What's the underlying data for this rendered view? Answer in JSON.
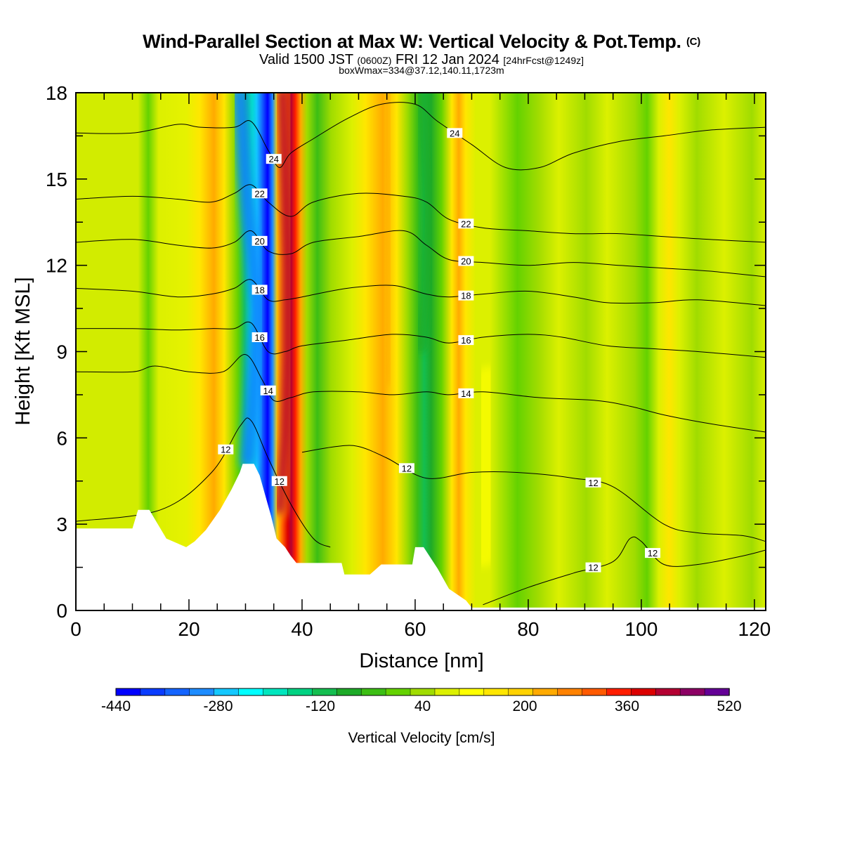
{
  "title": "Wind-Parallel Section at Max W: Vertical Velocity & Pot.Temp.",
  "title_mark": "(C)",
  "subtitle_pre": "Valid 1500 JST",
  "subtitle_zulu": "(0600Z)",
  "subtitle_date": "FRI 12 Jan 2024",
  "subtitle_fcst": "[24hrFcst@1249z]",
  "box_line": "boxWmax=334@37.12,140.11,1723m",
  "chart_data": {
    "type": "heatmap",
    "xlabel": "Distance [nm]",
    "ylabel": "Height [Kft MSL]",
    "xlim": [
      0,
      122
    ],
    "ylim": [
      0,
      18
    ],
    "x_ticks": [
      0,
      20,
      40,
      60,
      80,
      100,
      120
    ],
    "y_ticks": [
      0,
      3,
      6,
      9,
      12,
      15,
      18
    ],
    "colorbar": {
      "title": "Vertical Velocity [cm/s]",
      "min": -440,
      "max": 520,
      "step": 40,
      "tick_labels": [
        "-440",
        "-280",
        "-120",
        "40",
        "200",
        "360",
        "520"
      ],
      "colors": [
        "#0000ff",
        "#0a3cff",
        "#1464ff",
        "#1e8cff",
        "#14c8ff",
        "#00ffff",
        "#00e6be",
        "#00d282",
        "#14be50",
        "#1eaa28",
        "#3cbe14",
        "#64d200",
        "#a0dc00",
        "#dcf000",
        "#ffff00",
        "#ffe600",
        "#ffd200",
        "#ffaa00",
        "#ff8200",
        "#ff5a00",
        "#ff1e00",
        "#dc0000",
        "#b40032",
        "#8c0064",
        "#640096"
      ]
    },
    "velocity_features": [
      {
        "x": 32,
        "peak": -440,
        "kind": "downdraft core"
      },
      {
        "x": 37,
        "peak": 440,
        "kind": "updraft core"
      },
      {
        "x": 55,
        "peak": 200,
        "kind": "updraft"
      },
      {
        "x": 62,
        "peak": -160,
        "kind": "downdraft"
      },
      {
        "x": 68,
        "peak": 200,
        "kind": "updraft"
      },
      {
        "x": 78,
        "peak": -80,
        "kind": "downdraft"
      },
      {
        "x": 101,
        "peak": -80,
        "kind": "downdraft"
      },
      {
        "x": 104,
        "peak": 120,
        "kind": "updraft"
      }
    ],
    "terrain_kft": [
      [
        0,
        2.85
      ],
      [
        10,
        2.85
      ],
      [
        11,
        3.5
      ],
      [
        13,
        3.5
      ],
      [
        14.5,
        3.0
      ],
      [
        16,
        2.5
      ],
      [
        19.5,
        2.2
      ],
      [
        21,
        2.4
      ],
      [
        23,
        2.8
      ],
      [
        25.5,
        3.5
      ],
      [
        27.5,
        4.2
      ],
      [
        29,
        4.8
      ],
      [
        29.5,
        5.1
      ],
      [
        31.5,
        5.1
      ],
      [
        32.5,
        4.7
      ],
      [
        33.5,
        4.0
      ],
      [
        34.5,
        3.3
      ],
      [
        35.5,
        2.5
      ],
      [
        37,
        2.2
      ],
      [
        38,
        1.9
      ],
      [
        39,
        1.65
      ],
      [
        47,
        1.65
      ],
      [
        47.5,
        1.25
      ],
      [
        52,
        1.25
      ],
      [
        54,
        1.6
      ],
      [
        59.5,
        1.6
      ],
      [
        60,
        2.2
      ],
      [
        61.5,
        2.2
      ],
      [
        62.5,
        1.9
      ],
      [
        64,
        1.45
      ],
      [
        66,
        0.75
      ],
      [
        69,
        0.35
      ],
      [
        70,
        0.1
      ],
      [
        122,
        0.1
      ]
    ],
    "theta_contours": [
      {
        "label": "12",
        "pts": [
          [
            0,
            3.1
          ],
          [
            15,
            3.5
          ],
          [
            24,
            4.8
          ],
          [
            29,
            6.4
          ],
          [
            31,
            6.6
          ],
          [
            34,
            5.3
          ],
          [
            38,
            3.7
          ],
          [
            42,
            2.5
          ],
          [
            45,
            2.2
          ]
        ]
      },
      {
        "label": "12",
        "pts": [
          [
            40,
            5.5
          ],
          [
            46,
            5.7
          ],
          [
            50,
            5.7
          ],
          [
            55,
            5.3
          ],
          [
            62,
            4.6
          ],
          [
            70,
            4.8
          ],
          [
            78,
            4.8
          ],
          [
            88,
            4.6
          ],
          [
            95,
            4.3
          ],
          [
            104,
            3.0
          ],
          [
            110,
            2.7
          ],
          [
            118,
            2.6
          ],
          [
            122,
            2.4
          ]
        ]
      },
      {
        "label": "12",
        "pts": [
          [
            72,
            0.2
          ],
          [
            80,
            0.8
          ],
          [
            88,
            1.3
          ],
          [
            95,
            1.7
          ],
          [
            98,
            2.5
          ],
          [
            100,
            2.4
          ],
          [
            104,
            1.6
          ],
          [
            110,
            1.6
          ],
          [
            118,
            1.9
          ],
          [
            122,
            2.1
          ]
        ]
      },
      {
        "label": "14",
        "pts": [
          [
            0,
            8.3
          ],
          [
            10,
            8.3
          ],
          [
            14,
            8.5
          ],
          [
            20,
            8.3
          ],
          [
            26,
            8.3
          ],
          [
            30,
            8.9
          ],
          [
            33,
            8.0
          ],
          [
            35,
            7.3
          ],
          [
            38,
            7.4
          ],
          [
            42,
            7.6
          ],
          [
            50,
            7.6
          ],
          [
            56,
            7.5
          ],
          [
            62,
            7.6
          ],
          [
            66,
            7.5
          ],
          [
            72,
            7.6
          ],
          [
            82,
            7.4
          ],
          [
            92,
            7.3
          ],
          [
            98,
            7.1
          ],
          [
            104,
            6.8
          ],
          [
            112,
            6.5
          ],
          [
            122,
            6.2
          ]
        ]
      },
      {
        "label": "16",
        "pts": [
          [
            0,
            9.8
          ],
          [
            10,
            9.8
          ],
          [
            18,
            9.75
          ],
          [
            24,
            9.8
          ],
          [
            28,
            9.8
          ],
          [
            31,
            10.0
          ],
          [
            34,
            9.0
          ],
          [
            37,
            9.0
          ],
          [
            40,
            9.2
          ],
          [
            48,
            9.4
          ],
          [
            56,
            9.6
          ],
          [
            62,
            9.5
          ],
          [
            66,
            9.3
          ],
          [
            72,
            9.5
          ],
          [
            80,
            9.6
          ],
          [
            86,
            9.5
          ],
          [
            94,
            9.2
          ],
          [
            102,
            9.1
          ],
          [
            110,
            9.0
          ],
          [
            122,
            8.8
          ]
        ]
      },
      {
        "label": "18",
        "pts": [
          [
            0,
            11.2
          ],
          [
            10,
            11.1
          ],
          [
            18,
            10.9
          ],
          [
            24,
            11.0
          ],
          [
            28,
            11.2
          ],
          [
            31,
            11.5
          ],
          [
            34,
            10.8
          ],
          [
            37,
            10.8
          ],
          [
            40,
            10.9
          ],
          [
            48,
            11.2
          ],
          [
            56,
            11.3
          ],
          [
            62,
            11.0
          ],
          [
            66,
            10.9
          ],
          [
            72,
            11.0
          ],
          [
            80,
            11.1
          ],
          [
            88,
            10.9
          ],
          [
            94,
            10.7
          ],
          [
            102,
            10.7
          ],
          [
            110,
            10.8
          ],
          [
            122,
            10.6
          ]
        ]
      },
      {
        "label": "20",
        "pts": [
          [
            0,
            12.8
          ],
          [
            10,
            12.9
          ],
          [
            18,
            12.7
          ],
          [
            24,
            12.6
          ],
          [
            28,
            12.8
          ],
          [
            31,
            13.2
          ],
          [
            34,
            12.5
          ],
          [
            38,
            12.4
          ],
          [
            42,
            12.8
          ],
          [
            50,
            13.0
          ],
          [
            58,
            13.2
          ],
          [
            62,
            12.7
          ],
          [
            66,
            12.2
          ],
          [
            72,
            12.1
          ],
          [
            80,
            12.0
          ],
          [
            88,
            12.1
          ],
          [
            96,
            12.0
          ],
          [
            104,
            11.9
          ],
          [
            112,
            11.8
          ],
          [
            122,
            11.6
          ]
        ]
      },
      {
        "label": "22",
        "pts": [
          [
            0,
            14.3
          ],
          [
            10,
            14.4
          ],
          [
            18,
            14.3
          ],
          [
            24,
            14.2
          ],
          [
            28,
            14.5
          ],
          [
            31,
            14.8
          ],
          [
            34,
            14.2
          ],
          [
            38,
            13.7
          ],
          [
            42,
            14.2
          ],
          [
            50,
            14.5
          ],
          [
            58,
            14.4
          ],
          [
            62,
            14.2
          ],
          [
            66,
            13.6
          ],
          [
            72,
            13.3
          ],
          [
            80,
            13.2
          ],
          [
            88,
            13.1
          ],
          [
            96,
            13.1
          ],
          [
            104,
            13.0
          ],
          [
            112,
            12.9
          ],
          [
            122,
            12.8
          ]
        ]
      },
      {
        "label": "24",
        "pts": [
          [
            0,
            16.6
          ],
          [
            10,
            16.6
          ],
          [
            18,
            16.9
          ],
          [
            22,
            16.8
          ],
          [
            28,
            16.8
          ],
          [
            31,
            17.0
          ],
          [
            34,
            16.0
          ],
          [
            36,
            15.4
          ],
          [
            38,
            15.9
          ],
          [
            42,
            16.4
          ],
          [
            48,
            17.1
          ],
          [
            54,
            17.6
          ],
          [
            60,
            17.6
          ],
          [
            64,
            17.0
          ],
          [
            70,
            16.2
          ],
          [
            76,
            15.4
          ],
          [
            82,
            15.4
          ],
          [
            88,
            15.9
          ],
          [
            96,
            16.3
          ],
          [
            104,
            16.5
          ],
          [
            112,
            16.7
          ],
          [
            122,
            16.8
          ]
        ]
      }
    ]
  }
}
